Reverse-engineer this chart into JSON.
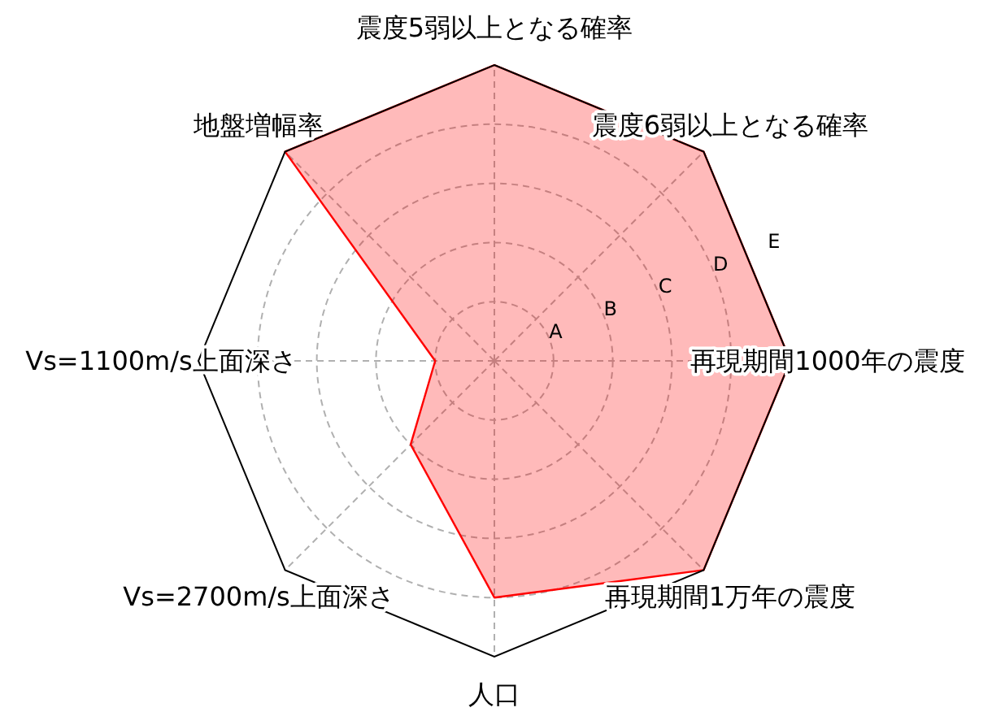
{
  "chart_data": {
    "type": "radar",
    "categories": [
      "震度5弱以上となる確率",
      "震度6弱以上となる確率",
      "再現期間1000年の震度",
      "再現期間1万年の震度",
      "人口",
      "Vs=2700m/s上面深さ",
      "Vs=1100m/s上面深さ",
      "地盤増幅率"
    ],
    "series": [
      {
        "color": "#ff0000",
        "values": [
          5,
          5,
          5,
          5,
          4,
          2,
          1,
          5
        ]
      }
    ],
    "ylim": [
      0,
      5
    ],
    "yticks": [
      {
        "value": 1,
        "label": "A"
      },
      {
        "value": 2,
        "label": "B"
      },
      {
        "value": 3,
        "label": "C"
      },
      {
        "value": 4,
        "label": "D"
      },
      {
        "value": 5,
        "label": "E"
      }
    ],
    "grid": true
  }
}
